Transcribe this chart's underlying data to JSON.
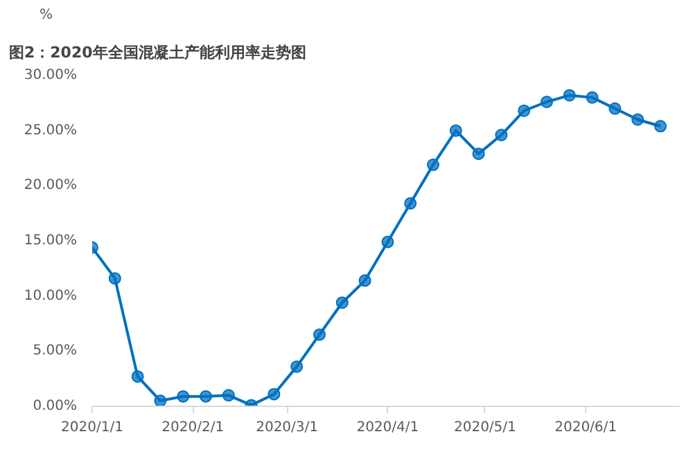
{
  "chart_data": {
    "type": "line",
    "title": "图2：2020年全国混凝土产能利用率走势图",
    "ylabel": "%",
    "x": [
      "2020-01-01",
      "2020-01-08",
      "2020-01-15",
      "2020-01-22",
      "2020-01-29",
      "2020-02-05",
      "2020-02-12",
      "2020-02-19",
      "2020-02-26",
      "2020-03-04",
      "2020-03-11",
      "2020-03-18",
      "2020-03-25",
      "2020-04-01",
      "2020-04-08",
      "2020-04-15",
      "2020-04-22",
      "2020-04-29",
      "2020-05-06",
      "2020-05-13",
      "2020-05-20",
      "2020-05-27",
      "2020-06-03",
      "2020-06-10",
      "2020-06-17",
      "2020-06-24"
    ],
    "series": [
      {
        "color": "#0070c0",
        "values": [
          14.4,
          11.6,
          2.7,
          0.5,
          0.9,
          0.9,
          1.0,
          0.1,
          1.1,
          3.6,
          6.5,
          9.4,
          11.4,
          14.9,
          18.4,
          21.9,
          25.0,
          22.9,
          24.6,
          26.8,
          27.6,
          28.2,
          28.0,
          27.0,
          26.0,
          25.4
        ]
      }
    ],
    "xlim": [
      "2020-01-01",
      "2020-06-30"
    ],
    "xticks": [
      {
        "value": "2020-01-01",
        "label": "2020/1/1"
      },
      {
        "value": "2020-02-01",
        "label": "2020/2/1"
      },
      {
        "value": "2020-03-01",
        "label": "2020/3/1"
      },
      {
        "value": "2020-04-01",
        "label": "2020/4/1"
      },
      {
        "value": "2020-05-01",
        "label": "2020/5/1"
      },
      {
        "value": "2020-06-01",
        "label": "2020/6/1"
      }
    ],
    "ylim": [
      0,
      30
    ],
    "yticks": [
      {
        "value": 0,
        "label": "0.00%"
      },
      {
        "value": 5,
        "label": "5.00%"
      },
      {
        "value": 10,
        "label": "10.00%"
      },
      {
        "value": 15,
        "label": "15.00%"
      },
      {
        "value": 20,
        "label": "20.00%"
      },
      {
        "value": 25,
        "label": "25.00%"
      },
      {
        "value": 30,
        "label": "30.00%"
      }
    ],
    "grid": false,
    "marker": "circle",
    "line_style": "solid"
  }
}
